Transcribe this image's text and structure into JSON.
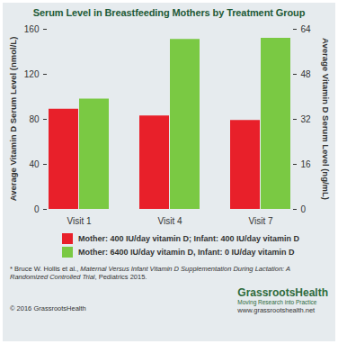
{
  "chart_data": {
    "type": "bar",
    "title": "Serum Level in Breastfeeding Mothers by Treatment Group",
    "categories": [
      "Visit 1",
      "Visit 4",
      "Visit 7"
    ],
    "series": [
      {
        "name": "Mother: 400 IU/day vitamin D; Infant: 400 IU/day vitamin D",
        "color": "#e8202a",
        "values": [
          89,
          83,
          79
        ]
      },
      {
        "name": "Mother: 6400 IU/day vitamin D, Infant: 0 IU/day vitamin D",
        "color": "#7ac943",
        "values": [
          98,
          151,
          152
        ]
      }
    ],
    "ylabel": "Average Vitamin D Serum Level (nmol/L)",
    "ylim": [
      0,
      160
    ],
    "yticks": [
      0,
      40,
      80,
      120,
      160
    ],
    "y2label": "Average Vitamin D Serum Level (ng/mL)",
    "y2lim": [
      0,
      64
    ],
    "y2ticks": [
      0,
      16,
      32,
      48,
      64
    ],
    "grid": false,
    "legend": "bottom",
    "source": [
      "* Bruce W. Hollis et al., ",
      "Maternal Versus Infant Vitamin D Supplementation During Lactation: A Randomized Controlled Trial",
      ", Pediatrics 2015."
    ],
    "copyright": "© 2016 GrassrootsHealth",
    "logo": "GrassrootsHealth",
    "tagline": "Moving Research into Practice",
    "url": "www.grassrootshealth.net"
  }
}
